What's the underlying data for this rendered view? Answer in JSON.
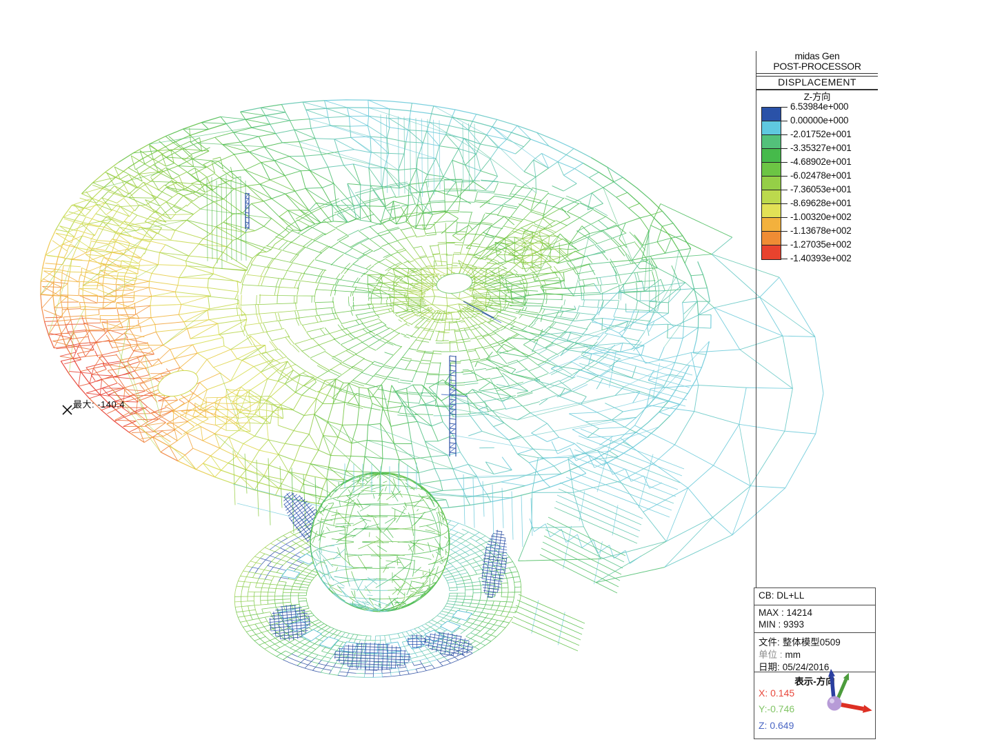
{
  "header": {
    "app": "midas Gen",
    "mode": "POST-PROCESSOR",
    "result_type": "DISPLACEMENT",
    "component": "Z-方向"
  },
  "legend": {
    "values": [
      "6.53984e+000",
      "0.00000e+000",
      "-2.01752e+001",
      "-3.35327e+001",
      "-4.68902e+001",
      "-6.02478e+001",
      "-7.36053e+001",
      "-8.69628e+001",
      "-1.00320e+002",
      "-1.13678e+002",
      "-1.27035e+002",
      "-1.40393e+002"
    ],
    "band_colors": [
      "#2a52a8",
      "#5fc8df",
      "#53c17a",
      "#46ba4b",
      "#6cc544",
      "#95cf47",
      "#bcd94d",
      "#e2e156",
      "#f3b13d",
      "#ef8c34",
      "#e8432e"
    ]
  },
  "info": {
    "combo": "CB: DL+LL",
    "max": "MAX : 14214",
    "min": "MIN : 9393",
    "file_label": "文件:",
    "file_value": "整体模型0509",
    "unit_label": "单位 :",
    "unit_value": "mm",
    "date_label": "日期:",
    "date_value": "05/24/2016",
    "view_title": "表示-方向",
    "dir_x": "X: 0.145",
    "dir_y": "Y:-0.746",
    "dir_z": "Z: 0.649",
    "dir_colors": {
      "x": "#e8483c",
      "y": "#82c566",
      "z": "#4a66c4"
    }
  },
  "annotation": {
    "max_label": "最大: -140.4"
  },
  "triad": {
    "x_color": "#dd2f23",
    "y_color": "#4c9c3c",
    "z_color": "#2b3fa0",
    "origin_color": "#b79bd7"
  },
  "model": {
    "wire_cyan": "#6ac9da",
    "navy": "#24489e",
    "navy_light": "#3a62c0",
    "contour_stops": [
      "#6ac9da",
      "#55c28c",
      "#47ba4c",
      "#78c742",
      "#a5d247",
      "#d9de52",
      "#f2bd3e",
      "#f0883a",
      "#e6392c"
    ]
  }
}
